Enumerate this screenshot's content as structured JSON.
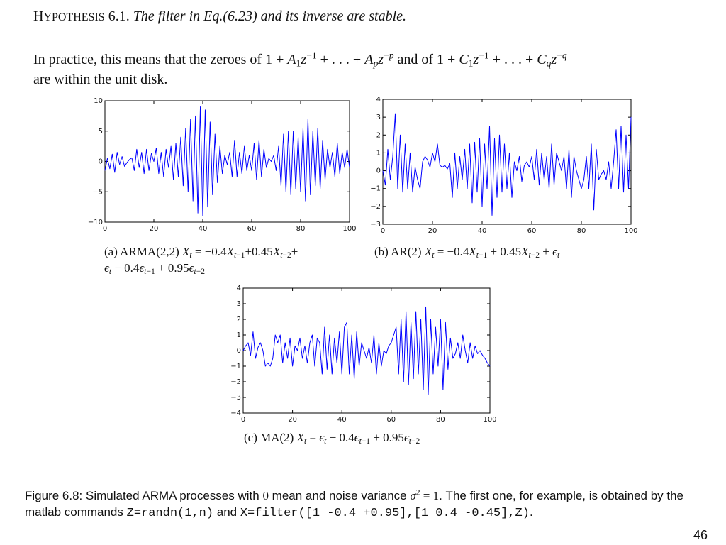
{
  "hypothesis": {
    "label_head": "H",
    "label_rest": "YPOTHESIS",
    "number": "6.1.",
    "statement": "The filter in Eq.(6.23) and its inverse are stable."
  },
  "practice": {
    "line1_start": "In practice, this means that the zeroes of ",
    "line1_mid": " and of ",
    "line2": "are within the unit disk."
  },
  "captions": {
    "a_label": "(a) ARMA(2,2) ",
    "b_label": "(b) AR(2) ",
    "c_label": "(c) MA(2) "
  },
  "figure_caption": {
    "prefix": "Figure 6.8: Simulated ARMA processes with ",
    "zero": "0",
    "mid": " mean and noise variance ",
    "after_sigma": ". The first one, for example, is obtained by the matlab commands ",
    "cmd1": "Z=randn(1,n)",
    "and": " and ",
    "cmd2": "X=filter([1 -0.4 +0.95],[1 0.4 -0.45],Z)",
    "end": "."
  },
  "page_number": "46",
  "chart_data": [
    {
      "type": "line",
      "panel": "a",
      "color": "#0000ff",
      "xlim": [
        0,
        100
      ],
      "ylim": [
        -10,
        10
      ],
      "xticks": [
        0,
        20,
        40,
        60,
        80,
        100
      ],
      "yticks": [
        -10,
        -5,
        0,
        5,
        10
      ],
      "ytick_labels": [
        "-10",
        "-5",
        "0",
        "5",
        "10"
      ],
      "y": [
        -1.5,
        0.5,
        -1.2,
        1.2,
        -1.8,
        1.5,
        -0.5,
        0.8,
        -0.8,
        -0.2,
        0.3,
        0.6,
        -1.5,
        2.0,
        -1.0,
        1.5,
        -2.0,
        2.0,
        -1.5,
        1.3,
        0.0,
        2.2,
        -2.0,
        1.5,
        -2.5,
        2.0,
        -1.0,
        2.5,
        -3.0,
        3.0,
        -2.5,
        4.0,
        -4.0,
        5.5,
        -5.0,
        7.0,
        -6.5,
        7.5,
        -8.5,
        9.0,
        -9.0,
        8.5,
        -7.5,
        6.5,
        -5.5,
        4.5,
        -3.5,
        2.5,
        -2.0,
        1.0,
        -0.5,
        1.5,
        -2.5,
        3.5,
        -2.5,
        1.5,
        -2.0,
        2.5,
        -1.5,
        1.0,
        -1.5,
        3.0,
        -3.0,
        3.5,
        -2.5,
        2.0,
        -1.0,
        0.5,
        0.0,
        1.0,
        -1.5,
        2.5,
        -4.0,
        4.5,
        -5.0,
        5.0,
        -5.5,
        5.0,
        -4.5,
        4.0,
        -5.0,
        5.5,
        -6.5,
        7.0,
        -5.5,
        5.0,
        -4.0,
        5.5,
        -4.5,
        3.5,
        -3.0,
        2.0,
        -1.0,
        1.5,
        -2.5,
        3.0,
        -2.0,
        1.5,
        -1.0,
        2.0,
        -1.0
      ]
    },
    {
      "type": "line",
      "panel": "b",
      "color": "#0000ff",
      "xlim": [
        0,
        100
      ],
      "ylim": [
        -3,
        4
      ],
      "xticks": [
        0,
        20,
        40,
        60,
        80,
        100
      ],
      "yticks": [
        -3,
        -2,
        -1,
        0,
        1,
        2,
        3,
        4
      ],
      "ytick_labels": [
        "-3",
        "-2",
        "-1",
        "0",
        "1",
        "2",
        "3",
        "4"
      ],
      "y": [
        0.0,
        -0.8,
        1.2,
        -0.5,
        0.8,
        3.2,
        -1.0,
        2.0,
        -1.2,
        1.5,
        -1.0,
        1.0,
        -1.2,
        0.2,
        -0.5,
        -1.0,
        0.5,
        0.8,
        0.6,
        0.2,
        1.0,
        0.5,
        1.5,
        0.3,
        0.2,
        0.3,
        0.1,
        0.4,
        -1.5,
        1.0,
        -1.0,
        0.8,
        -0.5,
        1.2,
        -1.0,
        1.5,
        -1.8,
        1.6,
        -1.2,
        1.8,
        -2.0,
        1.5,
        -1.0,
        2.5,
        -2.5,
        1.8,
        -1.5,
        2.0,
        -1.2,
        1.5,
        -1.0,
        1.0,
        -1.5,
        0.5,
        0.0,
        0.8,
        -0.6,
        0.3,
        0.5,
        0.2,
        0.8,
        -0.5,
        1.2,
        -0.8,
        1.0,
        -0.5,
        0.8,
        -1.0,
        1.5,
        -0.8,
        1.0,
        0.5,
        0.0,
        0.8,
        -1.0,
        1.2,
        -1.5,
        0.8,
        0.0,
        -0.5,
        -1.0,
        -0.5,
        0.8,
        -1.0,
        1.5,
        -2.2,
        1.2,
        -0.5,
        -0.2,
        0.0,
        -0.5,
        0.5,
        -1.0,
        0.5,
        2.3,
        -1.0,
        2.5,
        -1.2,
        2.0,
        -1.0,
        3.0
      ]
    },
    {
      "type": "line",
      "panel": "c",
      "color": "#0000ff",
      "xlim": [
        0,
        100
      ],
      "ylim": [
        -4,
        4
      ],
      "xticks": [
        0,
        20,
        40,
        60,
        80,
        100
      ],
      "yticks": [
        -4,
        -3,
        -2,
        -1,
        0,
        1,
        2,
        3,
        4
      ],
      "ytick_labels": [
        "-4",
        "-3",
        "-2",
        "-1",
        "0",
        "1",
        "2",
        "3",
        "4"
      ],
      "y": [
        0.0,
        0.3,
        0.5,
        -0.3,
        1.2,
        -0.5,
        0.2,
        0.5,
        0.0,
        -1.0,
        -0.8,
        -1.0,
        -0.5,
        1.0,
        0.5,
        1.0,
        -0.8,
        0.5,
        -0.5,
        0.8,
        -1.0,
        0.3,
        0.0,
        0.8,
        -0.5,
        0.3,
        -0.8,
        0.5,
        1.0,
        -1.0,
        0.8,
        0.5,
        -1.5,
        1.5,
        -1.2,
        1.0,
        -1.5,
        0.8,
        -0.8,
        1.2,
        -1.5,
        1.5,
        1.8,
        -1.5,
        1.0,
        -1.8,
        1.2,
        -1.0,
        0.5,
        0.0,
        -0.5,
        0.2,
        -0.8,
        1.0,
        -1.5,
        0.5,
        -1.0,
        0.0,
        -0.2,
        0.3,
        0.5,
        1.0,
        1.5,
        -1.5,
        2.0,
        -2.0,
        2.5,
        -2.2,
        1.8,
        -1.8,
        2.5,
        -1.5,
        2.0,
        -2.5,
        2.8,
        -2.8,
        2.0,
        -1.5,
        1.5,
        -1.0,
        2.0,
        -2.5,
        1.8,
        -1.2,
        0.8,
        -0.5,
        -0.2,
        0.5,
        -0.5,
        1.0,
        0.0,
        -0.8,
        0.5,
        -0.5,
        0.3,
        -0.2,
        0.0,
        -0.3,
        -0.5,
        -0.8,
        -1.0
      ]
    }
  ]
}
